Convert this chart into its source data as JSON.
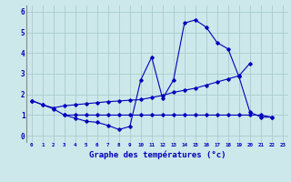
{
  "bg_color": "#cce8ea",
  "grid_color": "#aacccc",
  "line_color": "#0000bb",
  "title": "Graphe des températures (°c)",
  "xlim": [
    -0.5,
    23.5
  ],
  "ylim": [
    -0.3,
    6.3
  ],
  "yticks": [
    0,
    1,
    2,
    3,
    4,
    5,
    6
  ],
  "xticks": [
    0,
    1,
    2,
    3,
    4,
    5,
    6,
    7,
    8,
    9,
    10,
    11,
    12,
    13,
    14,
    15,
    16,
    17,
    18,
    19,
    20,
    21,
    22,
    23
  ],
  "line1_x": [
    0,
    1,
    2,
    3,
    4,
    5,
    6,
    7,
    8,
    9,
    10,
    11,
    12,
    13,
    14,
    15,
    16,
    17,
    18,
    19,
    20,
    21,
    22
  ],
  "line1_y": [
    1.7,
    1.5,
    1.3,
    1.0,
    0.85,
    0.7,
    0.65,
    0.5,
    0.3,
    0.45,
    2.7,
    3.8,
    1.8,
    2.7,
    5.45,
    5.6,
    5.25,
    4.5,
    4.2,
    2.85,
    1.15,
    0.9,
    0.9
  ],
  "line2_x": [
    0,
    1,
    2,
    3,
    4,
    5,
    6,
    7,
    8,
    9,
    10,
    11,
    12,
    13,
    14,
    15,
    16,
    17,
    18,
    19,
    20
  ],
  "line2_y": [
    1.7,
    1.5,
    1.35,
    1.45,
    1.5,
    1.55,
    1.6,
    1.65,
    1.68,
    1.72,
    1.75,
    1.85,
    1.95,
    2.1,
    2.2,
    2.3,
    2.45,
    2.6,
    2.75,
    2.9,
    3.5
  ],
  "line3_x": [
    3,
    4,
    5,
    6,
    7,
    8,
    9,
    10,
    11,
    12,
    13,
    14,
    15,
    16,
    17,
    18,
    19,
    20,
    21,
    22
  ],
  "line3_y": [
    1.0,
    1.0,
    1.0,
    1.0,
    1.0,
    1.0,
    1.0,
    1.0,
    1.0,
    1.0,
    1.0,
    1.0,
    1.0,
    1.0,
    1.0,
    1.0,
    1.0,
    1.0,
    1.0,
    0.9
  ]
}
